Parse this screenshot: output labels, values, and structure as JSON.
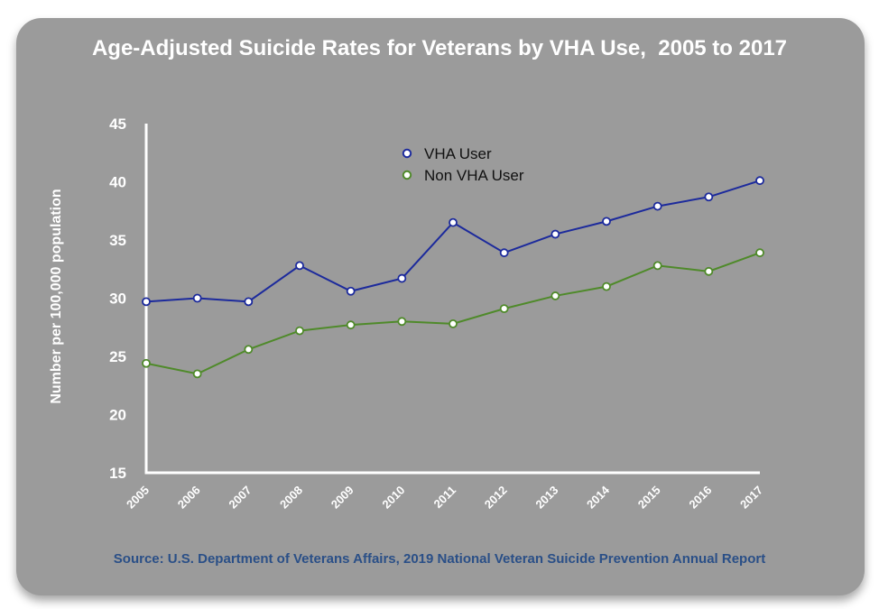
{
  "chart_data": {
    "type": "line",
    "title": "Age-Adjusted Suicide Rates for Veterans by VHA Use,  2005 to 2017",
    "xlabel": "",
    "ylabel": "Number per 100,000 population",
    "categories": [
      "2005",
      "2006",
      "2007",
      "2008",
      "2009",
      "2010",
      "2011",
      "2012",
      "2013",
      "2014",
      "2015",
      "2016",
      "2017"
    ],
    "ylim": [
      15,
      45
    ],
    "yticks": [
      15,
      20,
      25,
      30,
      35,
      40,
      45
    ],
    "grid": false,
    "legend_placement": "top-center",
    "series": [
      {
        "name": "VHA User",
        "color": "#1c2a9c",
        "values": [
          29.7,
          30.0,
          29.7,
          32.8,
          30.6,
          31.7,
          36.5,
          33.9,
          35.5,
          36.6,
          37.9,
          38.7,
          40.1
        ]
      },
      {
        "name": "Non VHA User",
        "color": "#4f8a2a",
        "values": [
          24.4,
          23.5,
          25.6,
          27.2,
          27.7,
          28.0,
          27.8,
          29.1,
          30.2,
          31.0,
          32.8,
          32.3,
          33.9
        ]
      }
    ]
  },
  "source": "Source: U.S. Department of Veterans Affairs, 2019 National Veteran Suicide Prevention Annual Report",
  "style": {
    "background": "#9b9b9b",
    "text_color": "#ffffff",
    "source_color": "#2a4f87"
  }
}
